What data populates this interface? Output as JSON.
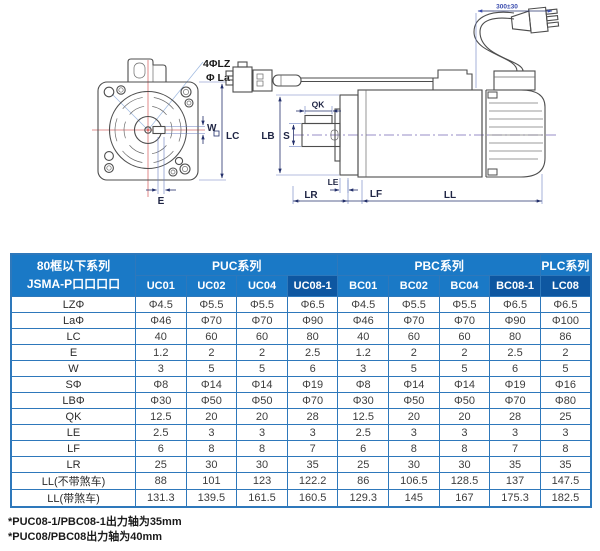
{
  "diagram": {
    "front_view": {
      "labels": {
        "bolt": "4ΦLZ",
        "pilot": "Φ La",
        "key_width": "W",
        "frame": "LC",
        "key_offset": "E"
      }
    },
    "side_view": {
      "labels": {
        "key_length": "QK",
        "shaft": "S",
        "flange_pilot": "LB",
        "flange_thickness": "LE",
        "shaft_length": "LR",
        "flange_face": "LF",
        "body_length": "LL",
        "cable": "300±30"
      }
    }
  },
  "table": {
    "corner": {
      "line1": "80框以下系列",
      "line2": "JSMA-P口口口口"
    },
    "groups": [
      {
        "label": "PUC系列",
        "span": 4
      },
      {
        "label": "PBC系列",
        "span": 4
      },
      {
        "label": "PLC系列",
        "span": 1
      }
    ],
    "columns": [
      {
        "label": "UC01",
        "highlight": false
      },
      {
        "label": "UC02",
        "highlight": false
      },
      {
        "label": "UC04",
        "highlight": false
      },
      {
        "label": "UC08-1",
        "highlight": true
      },
      {
        "label": "BC01",
        "highlight": false
      },
      {
        "label": "BC02",
        "highlight": false
      },
      {
        "label": "BC04",
        "highlight": false
      },
      {
        "label": "BC08-1",
        "highlight": true
      },
      {
        "label": "LC08",
        "highlight": true
      }
    ],
    "rows": [
      {
        "label": "LZΦ",
        "values": [
          "Φ4.5",
          "Φ5.5",
          "Φ5.5",
          "Φ6.5",
          "Φ4.5",
          "Φ5.5",
          "Φ5.5",
          "Φ6.5",
          "Φ6.5"
        ]
      },
      {
        "label": "LaΦ",
        "values": [
          "Φ46",
          "Φ70",
          "Φ70",
          "Φ90",
          "Φ46",
          "Φ70",
          "Φ70",
          "Φ90",
          "Φ100"
        ]
      },
      {
        "label": "LC",
        "values": [
          "40",
          "60",
          "60",
          "80",
          "40",
          "60",
          "60",
          "80",
          "86"
        ]
      },
      {
        "label": "E",
        "values": [
          "1.2",
          "2",
          "2",
          "2.5",
          "1.2",
          "2",
          "2",
          "2.5",
          "2"
        ]
      },
      {
        "label": "W",
        "values": [
          "3",
          "5",
          "5",
          "6",
          "3",
          "5",
          "5",
          "6",
          "5"
        ]
      },
      {
        "label": "SΦ",
        "values": [
          "Φ8",
          "Φ14",
          "Φ14",
          "Φ19",
          "Φ8",
          "Φ14",
          "Φ14",
          "Φ19",
          "Φ16"
        ]
      },
      {
        "label": "LBΦ",
        "values": [
          "Φ30",
          "Φ50",
          "Φ50",
          "Φ70",
          "Φ30",
          "Φ50",
          "Φ50",
          "Φ70",
          "Φ80"
        ]
      },
      {
        "label": "QK",
        "values": [
          "12.5",
          "20",
          "20",
          "28",
          "12.5",
          "20",
          "20",
          "28",
          "25"
        ]
      },
      {
        "label": "LE",
        "values": [
          "2.5",
          "3",
          "3",
          "3",
          "2.5",
          "3",
          "3",
          "3",
          "3"
        ]
      },
      {
        "label": "LF",
        "values": [
          "6",
          "8",
          "8",
          "7",
          "6",
          "8",
          "8",
          "7",
          "8"
        ]
      },
      {
        "label": "LR",
        "values": [
          "25",
          "30",
          "30",
          "35",
          "25",
          "30",
          "30",
          "35",
          "35"
        ]
      },
      {
        "label": "LL(不带煞车)",
        "values": [
          "88",
          "101",
          "123",
          "122.2",
          "86",
          "106.5",
          "128.5",
          "137",
          "147.5"
        ]
      },
      {
        "label": "LL(带煞车)",
        "values": [
          "131.3",
          "139.5",
          "161.5",
          "160.5",
          "129.3",
          "145",
          "167",
          "175.3",
          "182.5"
        ]
      }
    ]
  },
  "notes": [
    "*PUC08-1/PBC08-1出力轴为35mm",
    "*PUC08/PBC08出力轴为40mm"
  ],
  "colors": {
    "header_blue": "#1a79c6",
    "header_dark_blue": "#0e57a1",
    "table_border": "#2e78bb",
    "dimension_navy": "#24306b",
    "centerline_red": "#d96b6b",
    "cable_dim_blue": "#3a4cae"
  }
}
